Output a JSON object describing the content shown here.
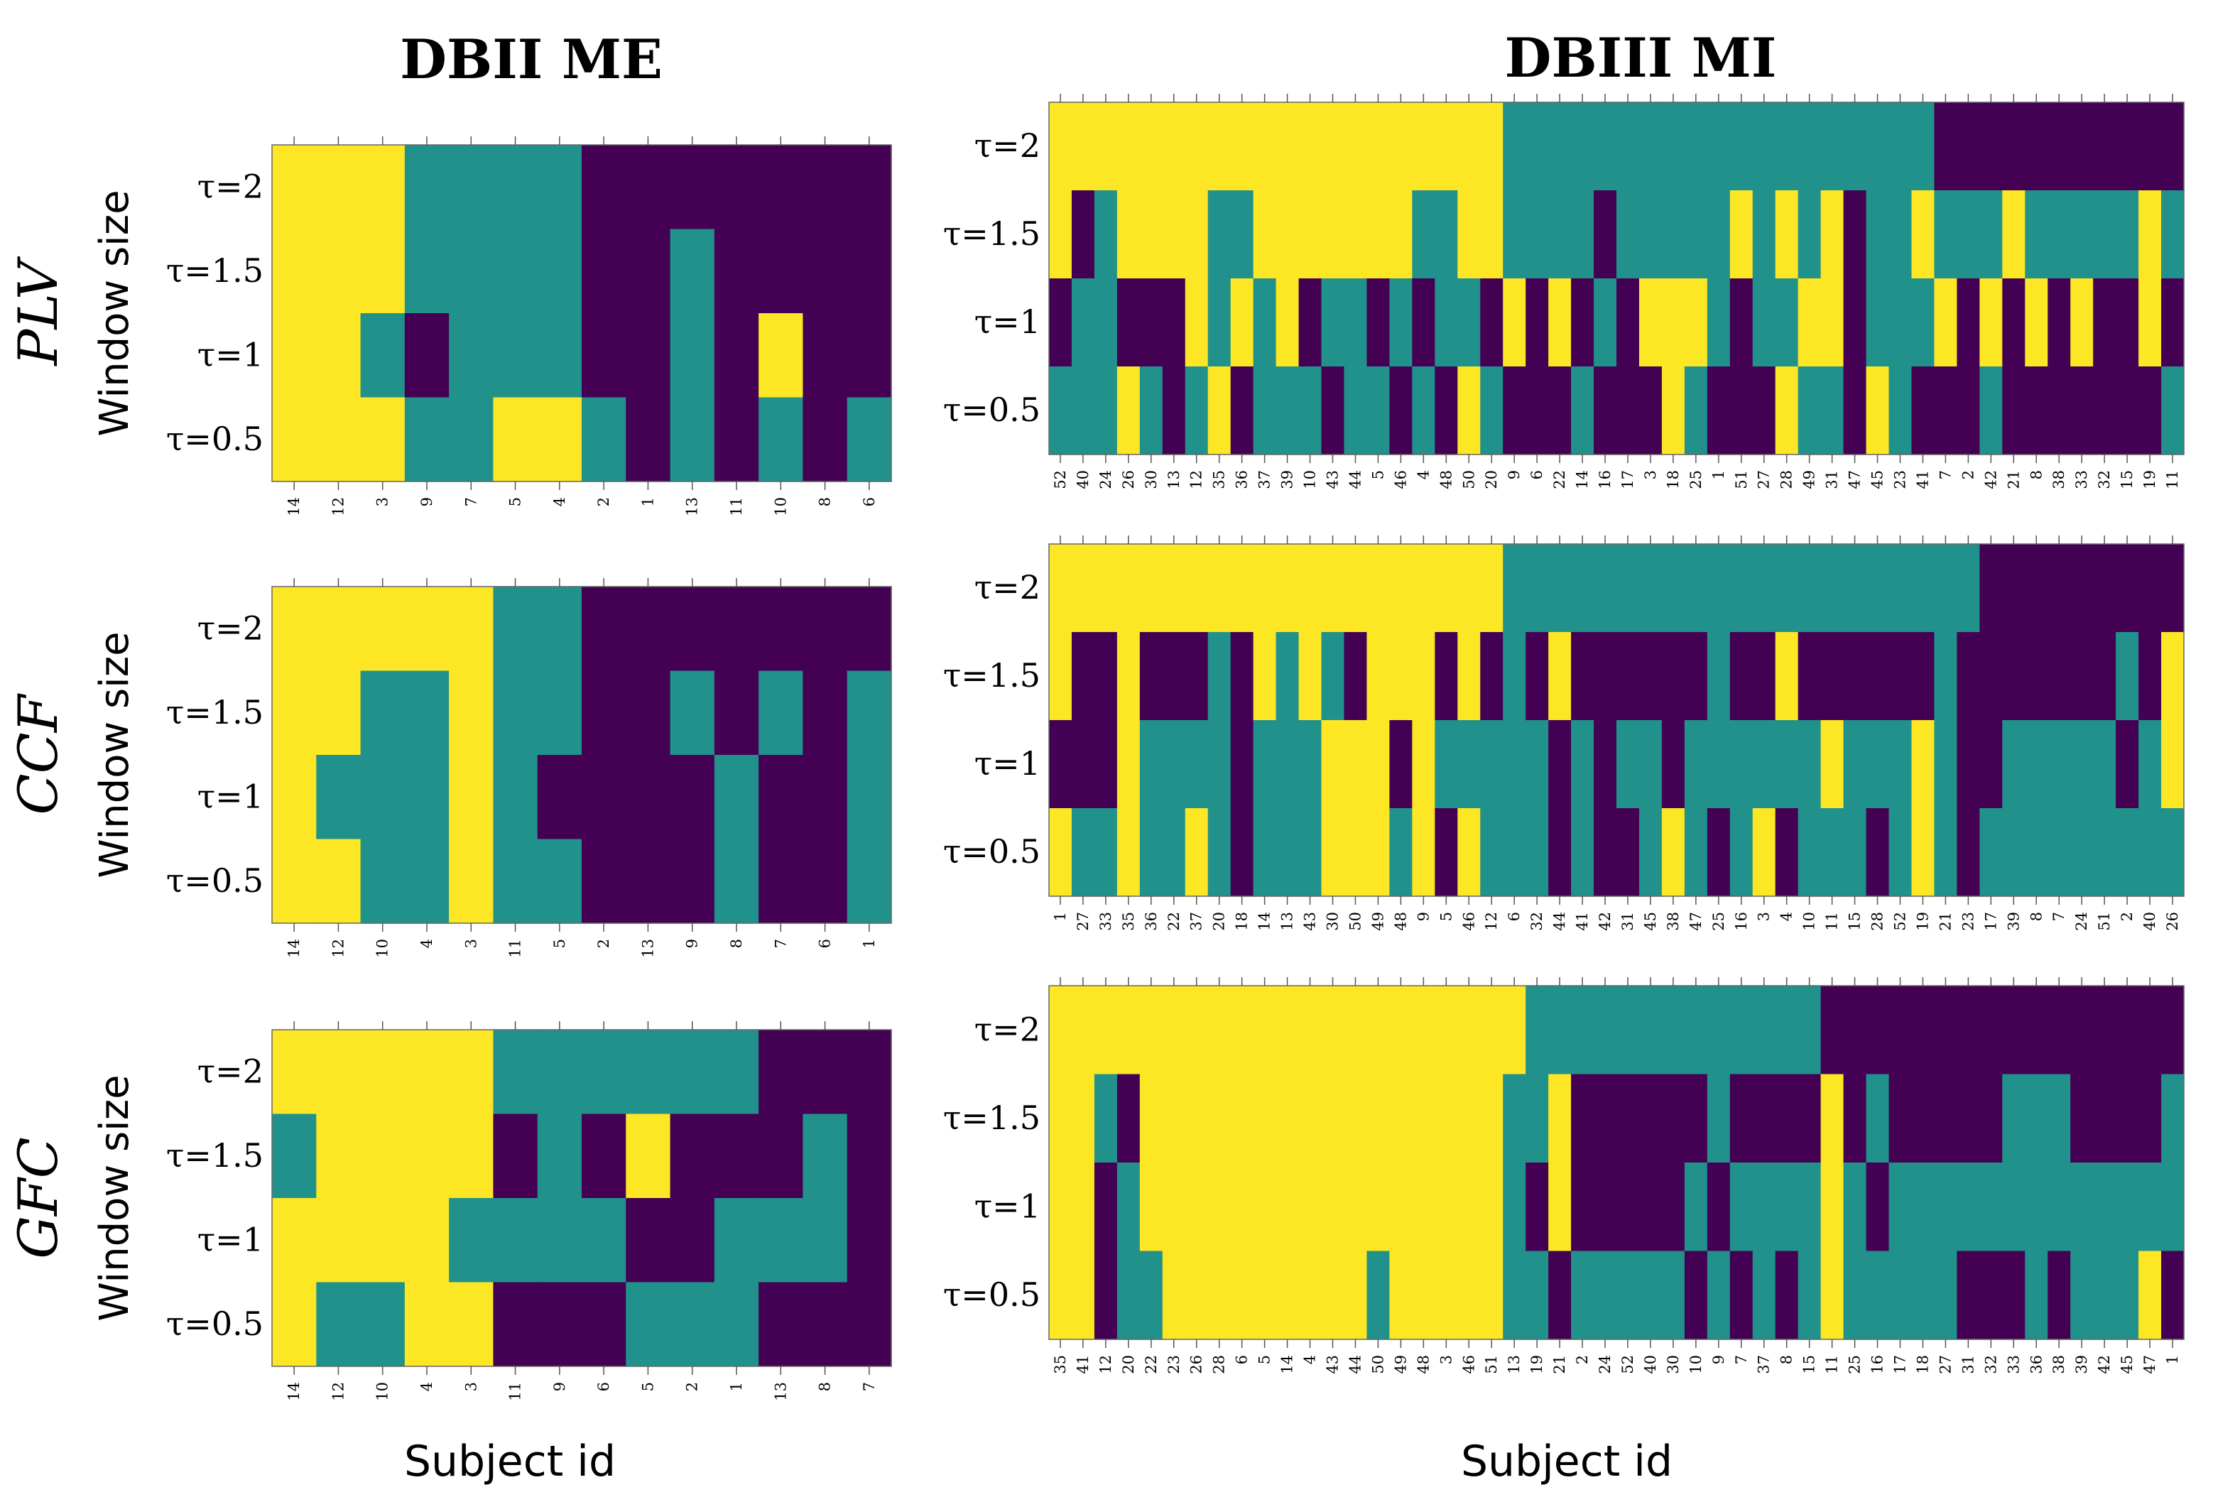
{
  "chart_data": {
    "type": "heatmap",
    "column_titles": [
      "DBII ME",
      "DBIII MI"
    ],
    "methods": [
      "PLV",
      "CCF",
      "GFC"
    ],
    "ylabel": "Window size",
    "xlabel": "Subject id",
    "y_ticks": [
      "τ=2",
      "τ=1.5",
      "τ=1",
      "τ=0.5"
    ],
    "legend": "none",
    "colors": {
      "0": "#fde725",
      "1": "#21918c",
      "2": "#440154"
    },
    "panels": [
      {
        "dataset": "DBII ME",
        "method": "PLV",
        "x": [
          "14",
          "12",
          "3",
          "9",
          "7",
          "5",
          "4",
          "2",
          "1",
          "13",
          "11",
          "10",
          "8",
          "6"
        ],
        "rows": [
          "00011112222222",
          "00011112212222",
          "00121112212022",
          "00011001212121"
        ]
      },
      {
        "dataset": "DBIII MI",
        "method": "PLV",
        "x": [
          "52",
          "40",
          "24",
          "26",
          "30",
          "13",
          "12",
          "35",
          "36",
          "37",
          "39",
          "10",
          "43",
          "44",
          "5",
          "46",
          "4",
          "48",
          "50",
          "20",
          "9",
          "6",
          "22",
          "14",
          "16",
          "17",
          "3",
          "18",
          "25",
          "1",
          "51",
          "27",
          "28",
          "49",
          "31",
          "47",
          "45",
          "23",
          "41",
          "7",
          "2",
          "42",
          "21",
          "8",
          "38",
          "33",
          "32",
          "15",
          "19",
          "11"
        ],
        "rows": [
          "00000000000000000000111111111111111111122222222222",
          "02100001100000001100111121111101010211011101111101",
          "21122201010211212112020212000121100211102020202202",
          "11101210211121121201222122201222011201222122222221"
        ]
      },
      {
        "dataset": "DBII ME",
        "method": "CCF",
        "x": [
          "14",
          "12",
          "10",
          "4",
          "3",
          "11",
          "5",
          "2",
          "13",
          "9",
          "8",
          "7",
          "6",
          "1"
        ],
        "rows": [
          "00000112222222",
          "00110112212121",
          "01110122221221",
          "00110112221221"
        ]
      },
      {
        "dataset": "DBIII MI",
        "method": "CCF",
        "x": [
          "1",
          "27",
          "33",
          "35",
          "36",
          "22",
          "37",
          "20",
          "18",
          "14",
          "13",
          "43",
          "30",
          "50",
          "49",
          "48",
          "9",
          "5",
          "46",
          "12",
          "6",
          "32",
          "44",
          "41",
          "42",
          "31",
          "45",
          "38",
          "47",
          "25",
          "16",
          "3",
          "4",
          "10",
          "11",
          "15",
          "28",
          "52",
          "19",
          "21",
          "23",
          "17",
          "39",
          "8",
          "7",
          "24",
          "51",
          "2",
          "40",
          "26"
        ],
        "rows": [
          "00000000000000000000111111111111111111111222222222",
          "02202221201012000202120222222122022222212222222120",
          "22201111211100020111112121121111110111012211111210",
          "01101101211100010201112122101210211121012111111111"
        ]
      },
      {
        "dataset": "DBII ME",
        "method": "GFC",
        "x": [
          "14",
          "12",
          "10",
          "4",
          "3",
          "11",
          "9",
          "6",
          "5",
          "2",
          "1",
          "13",
          "8",
          "7"
        ],
        "rows": [
          "00000111111222",
          "10000212022212",
          "00001111221112",
          "01100222111222"
        ]
      },
      {
        "dataset": "DBIII MI",
        "method": "GFC",
        "x": [
          "35",
          "41",
          "12",
          "20",
          "22",
          "23",
          "26",
          "28",
          "6",
          "5",
          "14",
          "4",
          "43",
          "44",
          "50",
          "49",
          "48",
          "3",
          "46",
          "51",
          "13",
          "19",
          "21",
          "2",
          "24",
          "52",
          "40",
          "30",
          "10",
          "9",
          "7",
          "37",
          "8",
          "15",
          "11",
          "25",
          "16",
          "17",
          "18",
          "27",
          "31",
          "32",
          "33",
          "36",
          "38",
          "39",
          "42",
          "45",
          "47",
          "1"
        ],
        "rows": [
          "00000000000000000000011111111111112222222222222222",
          "00120000000000000000110222222122220212222211122221",
          "00210000000000000000120222221211110121111111111111",
          "00211000000000100000112111112121210111112221211102"
        ]
      }
    ]
  }
}
